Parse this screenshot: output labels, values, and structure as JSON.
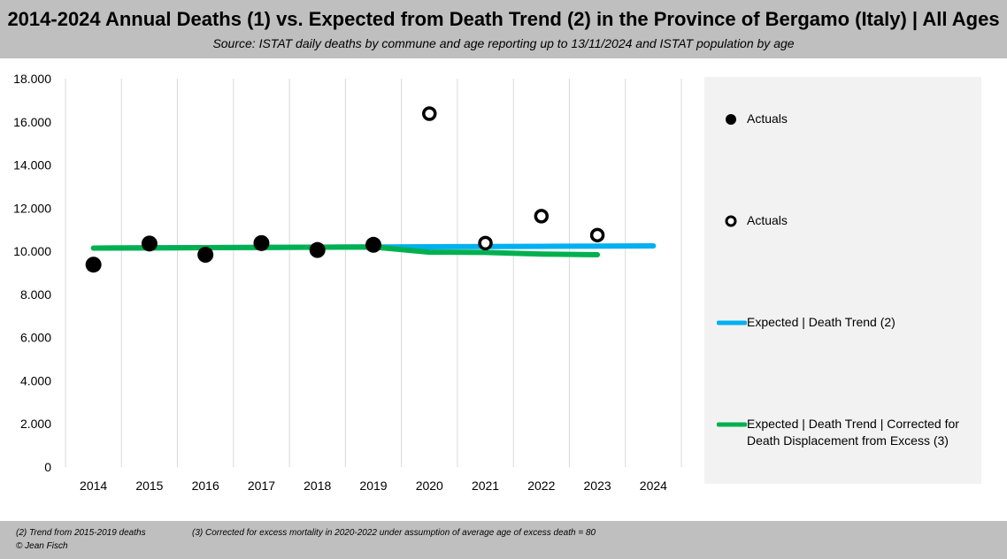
{
  "header": {
    "title": "2014-2024 Annual Deaths (1) vs. Expected from Death Trend (2) in the Province of Bergamo (Italy) | All Ages",
    "subtitle": "Source: ISTAT daily deaths by commune and age reporting up to 13/11/2024 and ISTAT population by age"
  },
  "legend": {
    "items": [
      {
        "label": "Actuals",
        "symbol": "filled-circle"
      },
      {
        "label": "Actuals",
        "symbol": "hollow-circle"
      },
      {
        "label": "Expected  |  Death Trend (2)",
        "symbol": "line",
        "color": "#00b0f0"
      },
      {
        "label": "Expected  |  Death Trend  |  Corrected for Death Displacement from Excess (3)",
        "symbol": "line",
        "color": "#00b050"
      }
    ]
  },
  "footer": {
    "note2": "(2)   Trend from 2015-2019 deaths",
    "note3": "(3) Corrected for excess mortality in 2020-2022 under assumption of average age of excess death = 80",
    "copyright": "© Jean Fisch"
  },
  "chart_data": {
    "type": "scatter",
    "categories": [
      "2014",
      "2015",
      "2016",
      "2017",
      "2018",
      "2019",
      "2020",
      "2021",
      "2022",
      "2023",
      "2024"
    ],
    "ylim": [
      0,
      18000
    ],
    "yticks": [
      0,
      2000,
      4000,
      6000,
      8000,
      10000,
      12000,
      14000,
      16000,
      18000
    ],
    "ytick_labels": [
      "0",
      "2.000",
      "4.000",
      "6.000",
      "8.000",
      "10.000",
      "12.000",
      "14.000",
      "16.000",
      "18.000"
    ],
    "grid": "vertical",
    "legend_position": "right",
    "series": [
      {
        "name": "Actuals",
        "style": "filled-marker",
        "color": "#000000",
        "x": [
          "2014",
          "2015",
          "2016",
          "2017",
          "2018",
          "2019"
        ],
        "values": [
          9380,
          10360,
          9840,
          10380,
          10060,
          10300
        ]
      },
      {
        "name": "Actuals",
        "style": "hollow-marker",
        "color": "#000000",
        "x": [
          "2020",
          "2021",
          "2022",
          "2023"
        ],
        "values": [
          16380,
          10380,
          11630,
          10750
        ]
      },
      {
        "name": "Expected  |  Death Trend (2)",
        "style": "line",
        "color": "#00b0f0",
        "x": [
          "2014",
          "2015",
          "2016",
          "2017",
          "2018",
          "2019",
          "2020",
          "2021",
          "2022",
          "2023",
          "2024"
        ],
        "values": [
          10150,
          10160,
          10170,
          10180,
          10190,
          10200,
          10210,
          10220,
          10230,
          10240,
          10250
        ]
      },
      {
        "name": "Expected  |  Death Trend  |  Corrected for Death Displacement from Excess (3)",
        "style": "line",
        "color": "#00b050",
        "x": [
          "2014",
          "2015",
          "2016",
          "2017",
          "2018",
          "2019",
          "2020",
          "2021",
          "2022",
          "2023"
        ],
        "values": [
          10150,
          10160,
          10170,
          10180,
          10190,
          10200,
          9960,
          9950,
          9870,
          9840
        ]
      }
    ]
  }
}
